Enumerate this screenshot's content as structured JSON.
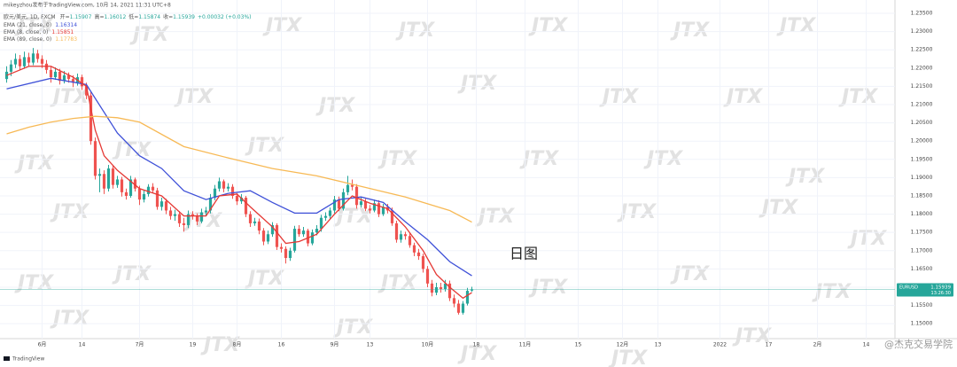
{
  "chart_data": {
    "type": "candlestick",
    "subtitle": "mikeyzhou发布于TradingView.com, 10月 14, 2021 11:31 UTC+8",
    "title": "欧元/美元, 1D, FXCM",
    "ohlc_labels": [
      "开=",
      "高=",
      "低=",
      "收="
    ],
    "change_label": "+0.00032 (+0.03%)",
    "annotation": "日图",
    "symbol": "EURUSD",
    "clock": "13:26:30",
    "watermark": "JTX",
    "footer": "TradingView",
    "credit": "@杰克交易学院",
    "up_color": "#26a69a",
    "down_color": "#ef5350",
    "price_line_color": "#26a69a",
    "grid": true,
    "xlim": [
      -1.5,
      200.5
    ],
    "ylim": [
      1.1464,
      1.2367
    ],
    "xticks": [
      {
        "value": 8,
        "label": "6月"
      },
      {
        "value": 17,
        "label": "14"
      },
      {
        "value": 30,
        "label": "7月"
      },
      {
        "value": 42,
        "label": "19"
      },
      {
        "value": 52,
        "label": "8月"
      },
      {
        "value": 62,
        "label": "16"
      },
      {
        "value": 74,
        "label": "9月"
      },
      {
        "value": 82,
        "label": "13"
      },
      {
        "value": 95,
        "label": "10月"
      },
      {
        "value": 106,
        "label": "18"
      },
      {
        "value": 117,
        "label": "11月"
      },
      {
        "value": 129,
        "label": "15"
      },
      {
        "value": 139,
        "label": "12月"
      },
      {
        "value": 147,
        "label": "13"
      },
      {
        "value": 161,
        "label": "2022"
      },
      {
        "value": 172,
        "label": "17"
      },
      {
        "value": 183,
        "label": "2月"
      },
      {
        "value": 194,
        "label": "14"
      }
    ],
    "yticks": [
      {
        "value": 1.15,
        "label": "1.15000"
      },
      {
        "value": 1.155,
        "label": "1.15500"
      },
      {
        "value": 1.16,
        "label": "1.16000"
      },
      {
        "value": 1.165,
        "label": "1.16500"
      },
      {
        "value": 1.17,
        "label": "1.17000"
      },
      {
        "value": 1.175,
        "label": "1.17500"
      },
      {
        "value": 1.18,
        "label": "1.18000"
      },
      {
        "value": 1.185,
        "label": "1.18500"
      },
      {
        "value": 1.19,
        "label": "1.19000"
      },
      {
        "value": 1.195,
        "label": "1.19500"
      },
      {
        "value": 1.2,
        "label": "1.20000"
      },
      {
        "value": 1.205,
        "label": "1.20500"
      },
      {
        "value": 1.21,
        "label": "1.21000"
      },
      {
        "value": 1.215,
        "label": "1.21500"
      },
      {
        "value": 1.22,
        "label": "1.22000"
      },
      {
        "value": 1.225,
        "label": "1.22500"
      },
      {
        "value": 1.23,
        "label": "1.23000"
      },
      {
        "value": 1.235,
        "label": "1.23500"
      }
    ],
    "candles": [
      [
        1.217,
        1.2205,
        1.216,
        1.219
      ],
      [
        1.219,
        1.2222,
        1.2178,
        1.221
      ],
      [
        1.221,
        1.224,
        1.22,
        1.2225
      ],
      [
        1.2225,
        1.2236,
        1.2195,
        1.2205
      ],
      [
        1.2205,
        1.2245,
        1.2198,
        1.223
      ],
      [
        1.223,
        1.2242,
        1.2205,
        1.2215
      ],
      [
        1.2215,
        1.2255,
        1.2208,
        1.224
      ],
      [
        1.224,
        1.225,
        1.2215,
        1.2225
      ],
      [
        1.2225,
        1.2235,
        1.22,
        1.2212
      ],
      [
        1.2212,
        1.2222,
        1.2185,
        1.2195
      ],
      [
        1.2195,
        1.2205,
        1.216,
        1.2175
      ],
      [
        1.2175,
        1.2202,
        1.2168,
        1.219
      ],
      [
        1.219,
        1.2198,
        1.2155,
        1.2165
      ],
      [
        1.2165,
        1.2192,
        1.2158,
        1.218
      ],
      [
        1.218,
        1.2188,
        1.216,
        1.217
      ],
      [
        1.217,
        1.218,
        1.2148,
        1.216
      ],
      [
        1.216,
        1.2185,
        1.2152,
        1.2175
      ],
      [
        1.2175,
        1.2182,
        1.214,
        1.215
      ],
      [
        1.215,
        1.216,
        1.2115,
        1.2125
      ],
      [
        1.2125,
        1.2135,
        1.199,
        1.2
      ],
      [
        1.2,
        1.201,
        1.1895,
        1.1905
      ],
      [
        1.1905,
        1.1925,
        1.186,
        1.191
      ],
      [
        1.191,
        1.192,
        1.1855,
        1.187
      ],
      [
        1.187,
        1.1935,
        1.1862,
        1.1925
      ],
      [
        1.1925,
        1.1932,
        1.187,
        1.188
      ],
      [
        1.188,
        1.1905,
        1.1872,
        1.1895
      ],
      [
        1.1895,
        1.1902,
        1.1848,
        1.186
      ],
      [
        1.186,
        1.187,
        1.184,
        1.185
      ],
      [
        1.185,
        1.1905,
        1.1845,
        1.1895
      ],
      [
        1.1895,
        1.19,
        1.1862,
        1.187
      ],
      [
        1.187,
        1.1878,
        1.1825,
        1.184
      ],
      [
        1.184,
        1.1865,
        1.1832,
        1.1855
      ],
      [
        1.1855,
        1.1882,
        1.1848,
        1.1875
      ],
      [
        1.1875,
        1.1885,
        1.1858,
        1.1865
      ],
      [
        1.1865,
        1.1872,
        1.1812,
        1.182
      ],
      [
        1.182,
        1.1845,
        1.181,
        1.1835
      ],
      [
        1.1835,
        1.1842,
        1.18,
        1.181
      ],
      [
        1.181,
        1.182,
        1.1785,
        1.1795
      ],
      [
        1.1795,
        1.1812,
        1.1782,
        1.18
      ],
      [
        1.18,
        1.1808,
        1.1765,
        1.1775
      ],
      [
        1.1775,
        1.179,
        1.1752,
        1.177
      ],
      [
        1.177,
        1.181,
        1.1762,
        1.18
      ],
      [
        1.18,
        1.1808,
        1.1785,
        1.1795
      ],
      [
        1.1795,
        1.1802,
        1.177,
        1.178
      ],
      [
        1.178,
        1.1815,
        1.1775,
        1.1805
      ],
      [
        1.1805,
        1.182,
        1.1795,
        1.181
      ],
      [
        1.181,
        1.1855,
        1.1802,
        1.1845
      ],
      [
        1.1845,
        1.188,
        1.1838,
        1.187
      ],
      [
        1.187,
        1.19,
        1.1862,
        1.189
      ],
      [
        1.189,
        1.1895,
        1.186,
        1.187
      ],
      [
        1.187,
        1.1885,
        1.1862,
        1.1875
      ],
      [
        1.1875,
        1.1882,
        1.1842,
        1.185
      ],
      [
        1.185,
        1.1858,
        1.1825,
        1.1835
      ],
      [
        1.1835,
        1.1855,
        1.1828,
        1.1845
      ],
      [
        1.1845,
        1.185,
        1.1792,
        1.18
      ],
      [
        1.18,
        1.1808,
        1.1765,
        1.1775
      ],
      [
        1.1775,
        1.179,
        1.1768,
        1.178
      ],
      [
        1.178,
        1.1788,
        1.1745,
        1.1755
      ],
      [
        1.1755,
        1.1762,
        1.1715,
        1.1725
      ],
      [
        1.1725,
        1.1755,
        1.1718,
        1.1745
      ],
      [
        1.1745,
        1.1778,
        1.1738,
        1.177
      ],
      [
        1.177,
        1.1775,
        1.1702,
        1.171
      ],
      [
        1.171,
        1.172,
        1.1695,
        1.1705
      ],
      [
        1.1705,
        1.1712,
        1.1665,
        1.168
      ],
      [
        1.168,
        1.1708,
        1.1672,
        1.17
      ],
      [
        1.17,
        1.1768,
        1.1695,
        1.176
      ],
      [
        1.176,
        1.177,
        1.1738,
        1.1745
      ],
      [
        1.1745,
        1.1765,
        1.1738,
        1.1755
      ],
      [
        1.1755,
        1.176,
        1.1712,
        1.172
      ],
      [
        1.172,
        1.1758,
        1.1715,
        1.175
      ],
      [
        1.175,
        1.177,
        1.1742,
        1.176
      ],
      [
        1.176,
        1.1798,
        1.1752,
        1.179
      ],
      [
        1.179,
        1.1805,
        1.1782,
        1.1795
      ],
      [
        1.1795,
        1.1818,
        1.1788,
        1.181
      ],
      [
        1.181,
        1.185,
        1.1802,
        1.184
      ],
      [
        1.184,
        1.1848,
        1.1808,
        1.1815
      ],
      [
        1.1815,
        1.187,
        1.181,
        1.186
      ],
      [
        1.186,
        1.1905,
        1.1852,
        1.188
      ],
      [
        1.188,
        1.1895,
        1.1865,
        1.1875
      ],
      [
        1.1875,
        1.1882,
        1.1815,
        1.1825
      ],
      [
        1.1825,
        1.1845,
        1.1818,
        1.1835
      ],
      [
        1.1835,
        1.1842,
        1.1808,
        1.1815
      ],
      [
        1.1815,
        1.1825,
        1.1802,
        1.181
      ],
      [
        1.181,
        1.184,
        1.1805,
        1.183
      ],
      [
        1.183,
        1.1838,
        1.1792,
        1.18
      ],
      [
        1.18,
        1.1828,
        1.1795,
        1.182
      ],
      [
        1.182,
        1.1828,
        1.1802,
        1.181
      ],
      [
        1.181,
        1.1818,
        1.1768,
        1.1775
      ],
      [
        1.1775,
        1.1782,
        1.1722,
        1.173
      ],
      [
        1.173,
        1.1755,
        1.1722,
        1.1745
      ],
      [
        1.1745,
        1.1752,
        1.173,
        1.174
      ],
      [
        1.174,
        1.1748,
        1.1708,
        1.1715
      ],
      [
        1.1715,
        1.1722,
        1.1685,
        1.1695
      ],
      [
        1.1695,
        1.1705,
        1.1675,
        1.1685
      ],
      [
        1.1685,
        1.1692,
        1.164,
        1.165
      ],
      [
        1.165,
        1.1658,
        1.16,
        1.161
      ],
      [
        1.161,
        1.162,
        1.1575,
        1.1585
      ],
      [
        1.1585,
        1.1612,
        1.1578,
        1.16
      ],
      [
        1.16,
        1.1612,
        1.1585,
        1.1595
      ],
      [
        1.1595,
        1.162,
        1.1588,
        1.161
      ],
      [
        1.161,
        1.1618,
        1.1562,
        1.157
      ],
      [
        1.157,
        1.158,
        1.1545,
        1.1555
      ],
      [
        1.1555,
        1.1565,
        1.1525,
        1.153
      ],
      [
        1.153,
        1.1562,
        1.1525,
        1.1555
      ],
      [
        1.1555,
        1.1598,
        1.155,
        1.159
      ],
      [
        1.15907,
        1.16012,
        1.15874,
        1.15939
      ]
    ],
    "series": [
      {
        "name": "EMA (21, close, 0)",
        "color": "#3f51d8",
        "x": [
          0,
          10,
          18,
          25,
          30,
          35,
          40,
          45,
          50,
          55,
          60,
          65,
          70,
          75,
          80,
          85,
          90,
          95,
          100,
          105
        ],
        "values": [
          1.2143,
          1.2172,
          1.2155,
          1.2022,
          1.196,
          1.1925,
          1.1864,
          1.184,
          1.1857,
          1.1864,
          1.1832,
          1.1803,
          1.1803,
          1.184,
          1.1847,
          1.1832,
          1.1779,
          1.173,
          1.167,
          1.16314
        ]
      },
      {
        "name": "EMA (8, close, 0)",
        "color": "#e53935",
        "x": [
          0,
          5,
          10,
          15,
          18,
          20,
          22,
          25,
          30,
          35,
          40,
          45,
          48,
          52,
          55,
          60,
          63,
          66,
          70,
          74,
          78,
          82,
          86,
          90,
          94,
          97,
          100,
          103,
          105
        ],
        "values": [
          1.218,
          1.2205,
          1.2205,
          1.2175,
          1.215,
          1.203,
          1.196,
          1.192,
          1.187,
          1.185,
          1.1795,
          1.1795,
          1.185,
          1.1855,
          1.182,
          1.1765,
          1.172,
          1.1725,
          1.1745,
          1.18,
          1.185,
          1.183,
          1.1815,
          1.1765,
          1.17,
          1.1635,
          1.16,
          1.157,
          1.15851
        ]
      },
      {
        "name": "EMA (89, close, 0)",
        "color": "#f7b955",
        "x": [
          0,
          5,
          10,
          15,
          20,
          25,
          30,
          40,
          50,
          60,
          70,
          80,
          90,
          100,
          105
        ],
        "values": [
          1.202,
          1.2038,
          1.2052,
          1.2062,
          1.2068,
          1.2064,
          1.2052,
          1.1985,
          1.1954,
          1.1925,
          1.1905,
          1.1876,
          1.1847,
          1.181,
          1.17783
        ]
      }
    ]
  }
}
